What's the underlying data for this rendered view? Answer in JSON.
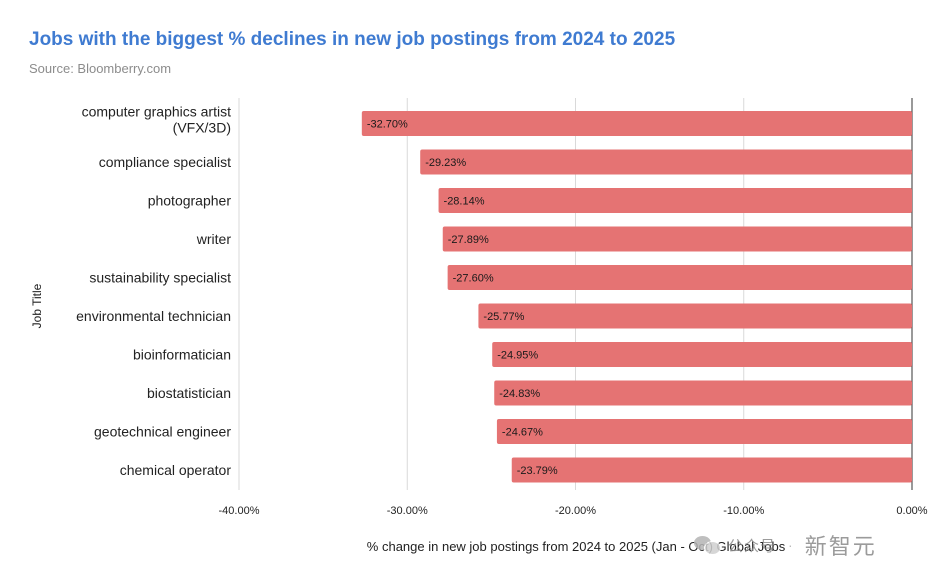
{
  "chart_data": {
    "type": "bar",
    "orientation": "horizontal",
    "title": "Jobs with the biggest % declines in new job postings from 2024 to 2025",
    "subtitle": "Source: Bloomberry.com",
    "xlabel": "% change in new job postings from 2024 to 2025 (Jan - Oct) Global Jobs",
    "ylabel": "Job Title",
    "xlim": [
      -40,
      0
    ],
    "x_ticks": [
      "-40.00%",
      "-30.00%",
      "-20.00%",
      "-10.00%",
      "0.00%"
    ],
    "grid": true,
    "legend": "none",
    "bar_color": "#e57373",
    "categories": [
      [
        "computer graphics artist",
        "(VFX/3D)"
      ],
      [
        "compliance specialist"
      ],
      [
        "photographer"
      ],
      [
        "writer"
      ],
      [
        "sustainability specialist"
      ],
      [
        "environmental technician"
      ],
      [
        "bioinformatician"
      ],
      [
        "biostatistician"
      ],
      [
        "geotechnical engineer"
      ],
      [
        "chemical operator"
      ]
    ],
    "values": [
      -32.7,
      -29.23,
      -28.14,
      -27.89,
      -27.6,
      -25.77,
      -24.95,
      -24.83,
      -24.67,
      -23.79
    ],
    "data_labels": [
      "-32.70%",
      "-29.23%",
      "-28.14%",
      "-27.89%",
      "-27.60%",
      "-25.77%",
      "-24.95%",
      "-24.83%",
      "-24.67%",
      "-23.79%"
    ]
  },
  "watermark": {
    "brand": "公众号",
    "separator": "·",
    "name": "新智元",
    "icon": "wechat-icon"
  }
}
